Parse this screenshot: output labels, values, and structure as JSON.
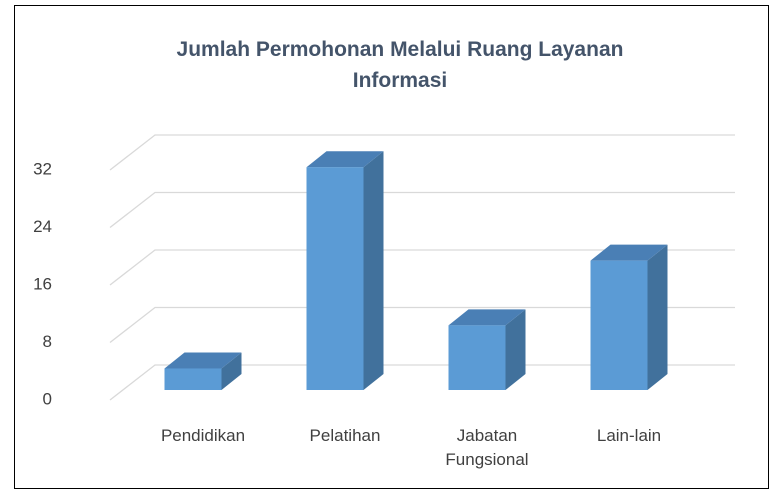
{
  "chart_data": {
    "type": "bar3d",
    "title": "Jumlah Permohonan Melalui Ruang Layanan Informasi",
    "categories": [
      "Pendidikan",
      "Pelatihan",
      "Jabatan Fungsional",
      "Lain-lain"
    ],
    "values": [
      3,
      31,
      9,
      18
    ],
    "color": "#5b9bd5",
    "ylim": [
      0,
      32
    ],
    "yticks": [
      0,
      8,
      16,
      24,
      32
    ],
    "grid": true
  }
}
